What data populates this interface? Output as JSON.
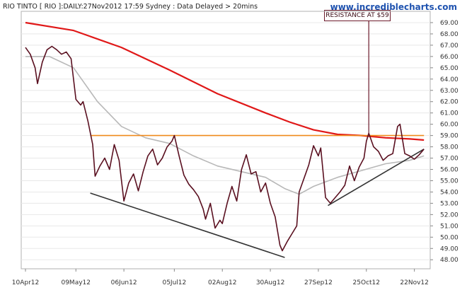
{
  "header": {
    "title": "RIO TINTO [ RIO ]:DAILY:27Nov2012 17:59 Sydney : Data Delayed > 20mins",
    "brand": "www.incrediblecharts.com"
  },
  "colors": {
    "price": "#5a1020",
    "ma_slow": "#e01818",
    "ma_fast": "#b8b8b8",
    "resistance": "#f08a1c",
    "trendline": "#333333",
    "brand": "#1f53b0",
    "grid": "#e8e8e8"
  },
  "chart_data": {
    "type": "line",
    "title": "RIO TINTO [ RIO ]:DAILY:27Nov2012 17:59 Sydney : Data Delayed > 20mins",
    "ylim": [
      47.2,
      70.0
    ],
    "y_ticks": [
      "48.00",
      "49.00",
      "50.00",
      "51.00",
      "52.00",
      "53.00",
      "54.00",
      "55.00",
      "56.00",
      "57.00",
      "58.00",
      "59.00",
      "60.00",
      "61.00",
      "62.00",
      "63.00",
      "64.00",
      "65.00",
      "66.00",
      "67.00",
      "68.00",
      "69.00"
    ],
    "x_labels": [
      "10Apr12",
      "09May12",
      "06Jun12",
      "05Jul12",
      "02Aug12",
      "30Aug12",
      "27Sep12",
      "25Oct12",
      "22Nov12"
    ],
    "x_label_sessions": [
      0,
      21,
      41,
      62,
      82,
      102,
      122,
      142,
      162
    ],
    "n_sessions": 168,
    "series": [
      {
        "role": "price",
        "points": [
          [
            0,
            66.8
          ],
          [
            2,
            66.2
          ],
          [
            4,
            65.0
          ],
          [
            5,
            63.6
          ],
          [
            7,
            65.5
          ],
          [
            9,
            66.6
          ],
          [
            11,
            66.9
          ],
          [
            13,
            66.6
          ],
          [
            15,
            66.2
          ],
          [
            17,
            66.4
          ],
          [
            19,
            65.8
          ],
          [
            20,
            64.0
          ],
          [
            21,
            62.2
          ],
          [
            23,
            61.7
          ],
          [
            24,
            62.0
          ],
          [
            26,
            60.3
          ],
          [
            28,
            58.2
          ],
          [
            29,
            55.4
          ],
          [
            31,
            56.3
          ],
          [
            33,
            57.0
          ],
          [
            35,
            56.0
          ],
          [
            37,
            58.2
          ],
          [
            39,
            56.8
          ],
          [
            41,
            53.2
          ],
          [
            43,
            54.8
          ],
          [
            45,
            55.6
          ],
          [
            47,
            54.1
          ],
          [
            49,
            55.8
          ],
          [
            51,
            57.2
          ],
          [
            53,
            57.8
          ],
          [
            55,
            56.4
          ],
          [
            57,
            57.0
          ],
          [
            59,
            58.0
          ],
          [
            61,
            58.5
          ],
          [
            62,
            59.0
          ],
          [
            64,
            57.2
          ],
          [
            66,
            55.5
          ],
          [
            68,
            54.7
          ],
          [
            70,
            54.2
          ],
          [
            72,
            53.6
          ],
          [
            74,
            52.5
          ],
          [
            75,
            51.6
          ],
          [
            77,
            53.0
          ],
          [
            79,
            50.8
          ],
          [
            81,
            51.5
          ],
          [
            82,
            51.2
          ],
          [
            84,
            53.0
          ],
          [
            86,
            54.5
          ],
          [
            88,
            53.2
          ],
          [
            90,
            56.0
          ],
          [
            92,
            57.3
          ],
          [
            94,
            55.6
          ],
          [
            96,
            55.8
          ],
          [
            98,
            54.0
          ],
          [
            100,
            54.8
          ],
          [
            102,
            53.0
          ],
          [
            104,
            51.8
          ],
          [
            106,
            49.3
          ],
          [
            107,
            48.8
          ],
          [
            109,
            49.6
          ],
          [
            111,
            50.3
          ],
          [
            113,
            51.0
          ],
          [
            114,
            54.0
          ],
          [
            116,
            55.2
          ],
          [
            118,
            56.4
          ],
          [
            120,
            58.1
          ],
          [
            122,
            57.2
          ],
          [
            123,
            57.9
          ],
          [
            125,
            53.5
          ],
          [
            127,
            53.0
          ],
          [
            129,
            53.5
          ],
          [
            131,
            54.0
          ],
          [
            133,
            54.6
          ],
          [
            135,
            56.3
          ],
          [
            137,
            55.0
          ],
          [
            139,
            56.2
          ],
          [
            141,
            57.0
          ],
          [
            142,
            58.5
          ],
          [
            143,
            59.2
          ],
          [
            145,
            58.0
          ],
          [
            147,
            57.6
          ],
          [
            149,
            56.8
          ],
          [
            151,
            57.2
          ],
          [
            153,
            57.4
          ],
          [
            155,
            59.8
          ],
          [
            156,
            60.0
          ],
          [
            158,
            57.4
          ],
          [
            160,
            57.2
          ],
          [
            162,
            56.9
          ],
          [
            164,
            57.3
          ],
          [
            166,
            57.8
          ]
        ]
      },
      {
        "role": "ma_slow",
        "points": [
          [
            0,
            69.0
          ],
          [
            20,
            68.3
          ],
          [
            40,
            66.8
          ],
          [
            60,
            64.8
          ],
          [
            80,
            62.7
          ],
          [
            100,
            61.0
          ],
          [
            110,
            60.2
          ],
          [
            120,
            59.5
          ],
          [
            130,
            59.1
          ],
          [
            140,
            59.0
          ],
          [
            150,
            58.8
          ],
          [
            160,
            58.7
          ],
          [
            166,
            58.6
          ]
        ]
      },
      {
        "role": "ma_fast",
        "points": [
          [
            0,
            66.0
          ],
          [
            10,
            66.0
          ],
          [
            20,
            65.0
          ],
          [
            30,
            62.0
          ],
          [
            40,
            59.8
          ],
          [
            50,
            58.8
          ],
          [
            60,
            58.3
          ],
          [
            70,
            57.2
          ],
          [
            80,
            56.3
          ],
          [
            90,
            55.8
          ],
          [
            100,
            55.3
          ],
          [
            108,
            54.3
          ],
          [
            114,
            53.8
          ],
          [
            120,
            54.5
          ],
          [
            130,
            55.3
          ],
          [
            140,
            55.9
          ],
          [
            150,
            56.5
          ],
          [
            160,
            56.8
          ],
          [
            166,
            57.2
          ]
        ]
      },
      {
        "role": "resistance",
        "points": [
          [
            27,
            59.0
          ],
          [
            166,
            59.0
          ]
        ]
      },
      {
        "role": "support_downtrend",
        "points": [
          [
            27,
            53.9
          ],
          [
            108,
            48.2
          ]
        ]
      },
      {
        "role": "support_uptrend",
        "points": [
          [
            126,
            52.8
          ],
          [
            166,
            57.8
          ]
        ]
      }
    ],
    "annotations": [
      {
        "label": "RESISTANCE AT $59",
        "session": 143,
        "value": 59.0
      }
    ]
  }
}
